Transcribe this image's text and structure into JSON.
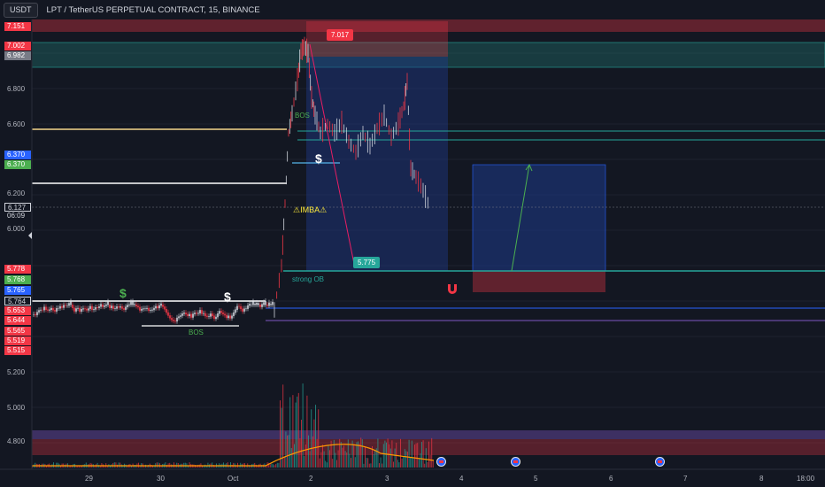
{
  "header": {
    "currency_button": "USDT",
    "symbol_title": "LPT / TetherUS PERPETUAL CONTRACT, 15, BINANCE"
  },
  "colors": {
    "background": "#131722",
    "up": "#d1d4dc",
    "down": "#f23645",
    "teal": "#26a69a",
    "blue_zone": "#1e3a8a",
    "red_zone": "#f23645",
    "purple_zone": "#7e57c2",
    "accent_green": "#4caf50",
    "accent_blue": "#2962ff",
    "yellow_line": "#f5d58a"
  },
  "price_axis": {
    "labels": [
      "6.800",
      "6.600",
      "6.200",
      "6.000",
      "5.200",
      "5.000",
      "4.800"
    ]
  },
  "price_tags": [
    {
      "value": "7.151",
      "color": "#f23645"
    },
    {
      "value": "7.002",
      "color": "#f23645"
    },
    {
      "value": "6.982",
      "color": "#787b86"
    },
    {
      "value": "6.370",
      "color": "#2962ff"
    },
    {
      "value": "6.370",
      "color": "#4caf50"
    },
    {
      "value": "6.127",
      "color": "#131722"
    },
    {
      "value": "06:09",
      "color": "#131722"
    },
    {
      "value": "5.778",
      "color": "#f23645"
    },
    {
      "value": "5.768",
      "color": "#4caf50"
    },
    {
      "value": "5.765",
      "color": "#2962ff"
    },
    {
      "value": "5.764",
      "color": "#131722"
    },
    {
      "value": "5.653",
      "color": "#f23645"
    },
    {
      "value": "5.644",
      "color": "#f23645"
    },
    {
      "value": "5.565",
      "color": "#f23645"
    },
    {
      "value": "5.519",
      "color": "#f23645"
    },
    {
      "value": "5.515",
      "color": "#f23645"
    }
  ],
  "time_axis": {
    "labels": [
      "29",
      "30",
      "Oct",
      "2",
      "3",
      "4",
      "5",
      "6",
      "7",
      "8",
      "18:00"
    ]
  },
  "annotations": {
    "high_label": "7.017",
    "target_label": "5.775",
    "bos_top": "BOS",
    "bos_bottom": "BOS",
    "imba": "⚠IMBA⚠",
    "strong_ob": "strong OB",
    "dollar_1": "$",
    "dollar_2": "$",
    "dollar_3": "$"
  }
}
